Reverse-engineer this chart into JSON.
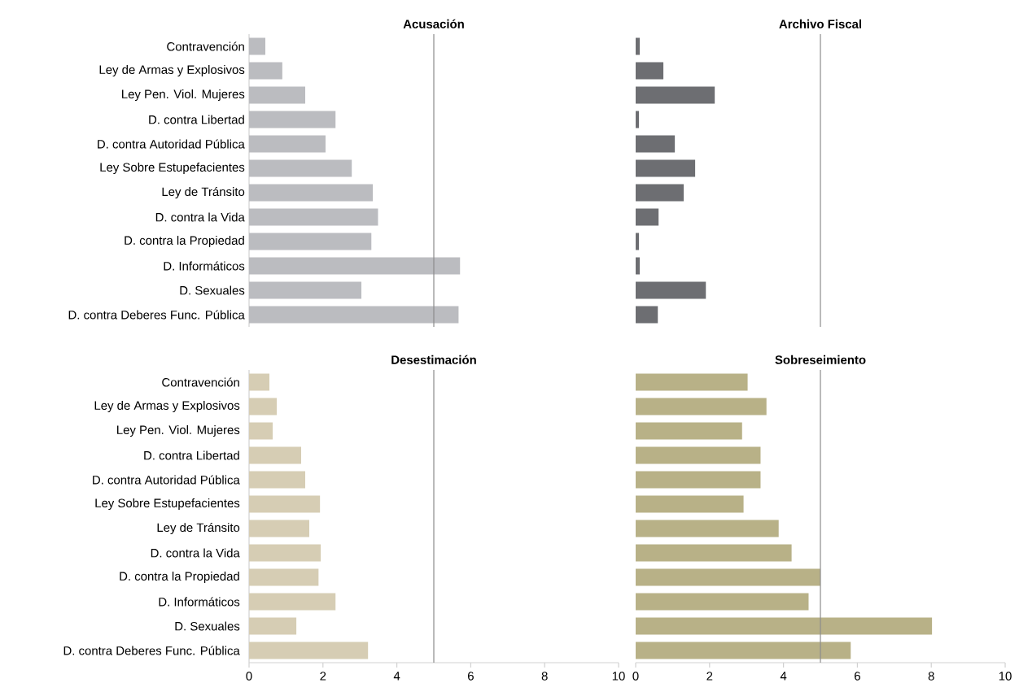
{
  "chart_data": [
    {
      "type": "bar",
      "orientation": "horizontal",
      "title": "Acusación",
      "categories": [
        "Contravención",
        "Ley de Armas y Explosivos",
        "Ley Pen. Viol. Mujeres",
        "D. contra Libertad",
        "D. contra Autoridad Pública",
        "Ley Sobre Estupefacientes",
        "Ley de Tránsito",
        "D. contra la Vida",
        "D. contra la Propiedad",
        "D. Informáticos",
        "D. Sexuales",
        "D. contra Deberes Func. Pública"
      ],
      "values": [
        0.44,
        0.9,
        1.52,
        2.34,
        2.07,
        2.78,
        3.35,
        3.49,
        3.31,
        5.71,
        3.04,
        5.67
      ],
      "color": "#bbbcc0",
      "xlim": [
        0,
        10
      ],
      "xticks": [
        0,
        2,
        4,
        6,
        8,
        10
      ],
      "ref_lines": [
        {
          "axis": "x",
          "value": 5,
          "color": "#8c8c8c"
        }
      ],
      "tick_labels": "y"
    },
    {
      "type": "bar",
      "orientation": "horizontal",
      "title": "Archivo Fiscal",
      "categories": [
        null,
        null,
        null,
        null,
        null,
        null,
        null,
        null,
        null,
        null,
        null,
        null
      ],
      "values": [
        0.11,
        0.75,
        2.14,
        0.09,
        1.06,
        1.61,
        1.3,
        0.62,
        0.09,
        0.11,
        1.9,
        0.6
      ],
      "color": "#6d6e72",
      "xlim": [
        0,
        10
      ],
      "xticks": [
        0,
        2,
        4,
        6,
        8,
        10
      ],
      "ref_lines": [
        {
          "axis": "x",
          "value": 5,
          "color": "#8c8c8c"
        }
      ],
      "tick_labels": false
    },
    {
      "type": "bar",
      "orientation": "horizontal",
      "title": "Desestimación",
      "categories": [
        "Contravención",
        "Ley de Armas y Explosivos",
        "Ley Pen. Viol. Mujeres",
        "D. contra Libertad",
        "D. contra Autoridad Pública",
        "Ley Sobre Estupefacientes",
        "Ley de Tránsito",
        "D. contra la Vida",
        "D. contra la Propiedad",
        "D. Informáticos",
        "D. Sexuales",
        "D. contra Deberes Func. Pública"
      ],
      "values": [
        0.55,
        0.75,
        0.64,
        1.41,
        1.52,
        1.92,
        1.63,
        1.94,
        1.88,
        2.34,
        1.28,
        3.22
      ],
      "color": "#d6cdb4",
      "xlim": [
        0,
        10
      ],
      "xticks": [
        0,
        2,
        4,
        6,
        8,
        10
      ],
      "ref_lines": [
        {
          "axis": "x",
          "value": 5,
          "color": "#8c8c8c"
        }
      ]
    },
    {
      "type": "bar",
      "orientation": "horizontal",
      "title": "Sobreseimiento",
      "categories": [
        null,
        null,
        null,
        null,
        null,
        null,
        null,
        null,
        null,
        null,
        null,
        null
      ],
      "values": [
        3.03,
        3.54,
        2.88,
        3.38,
        3.38,
        2.92,
        3.87,
        4.22,
        5.0,
        4.68,
        8.02,
        5.82
      ],
      "color": "#b8b187",
      "xlim": [
        0,
        10
      ],
      "xticks": [
        0,
        2,
        4,
        6,
        8,
        10
      ],
      "ref_lines": [
        {
          "axis": "x",
          "value": 5,
          "color": "#8c8c8c"
        }
      ],
      "tick_labels": "x"
    }
  ]
}
